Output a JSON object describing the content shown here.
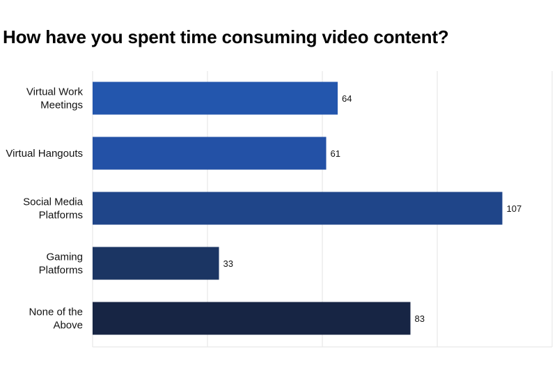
{
  "chart_data": {
    "type": "bar",
    "orientation": "horizontal",
    "title": "How have you spent time consuming video content?",
    "categories": [
      [
        "Virtual Work",
        "Meetings"
      ],
      [
        "Virtual Hangouts"
      ],
      [
        "Social Media",
        "Platforms"
      ],
      [
        "Gaming",
        "Platforms"
      ],
      [
        "None of the",
        "Above"
      ]
    ],
    "values": [
      64,
      61,
      107,
      33,
      83
    ],
    "value_labels": [
      "64",
      "61",
      "107",
      "33",
      "83"
    ],
    "xlim": [
      0,
      120
    ],
    "grid": true,
    "legend": "none",
    "colors": [
      "#2356ad",
      "#2351a6",
      "#1f4589",
      "#1b3563",
      "#172544"
    ]
  }
}
